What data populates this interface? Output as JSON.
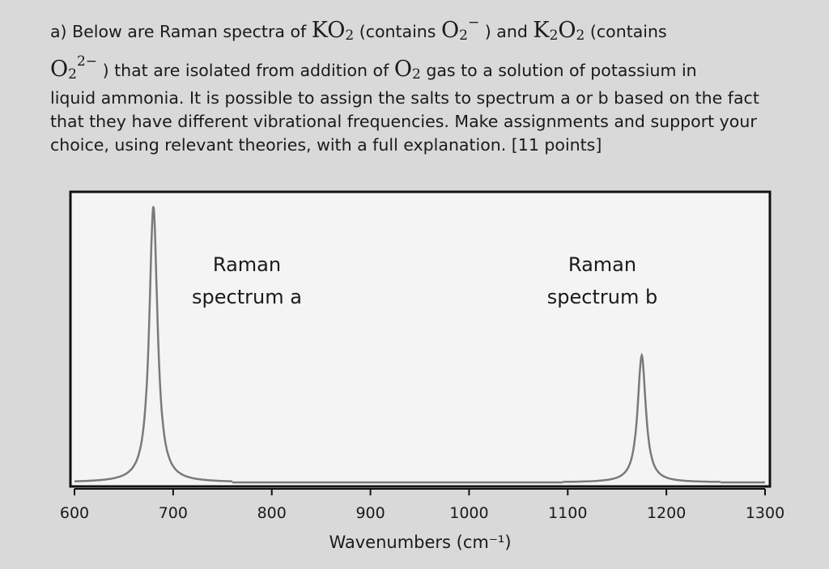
{
  "question": {
    "prefix": "a) Below are Raman spectra of",
    "ko2": "KO",
    "ko2_sub": "2",
    "contains1": "(contains",
    "o2_minus": "O",
    "o2_minus_sub": "2",
    "o2_minus_charge": "−",
    "and": ") and",
    "k2o2_k": "K",
    "k2o2_sub1": "2",
    "k2o2_o": "O",
    "k2o2_sub2": "2",
    "contains2": "(contains",
    "o22_o": "O",
    "o22_sub": "2",
    "o22_charge": "2−",
    "line2_text": ") that are isolated from addition of",
    "o2gas_o": "O",
    "o2gas_sub": "2",
    "line2_end": "gas to a solution of potassium in",
    "line3": "liquid ammonia. It is possible to assign the salts to spectrum a or b based on the fact",
    "line4": "that they have different vibrational frequencies. Make assignments and support your",
    "line5": "choice, using relevant theories, with a full explanation. [11 points]"
  },
  "chart_data": {
    "type": "line",
    "xlabel": "Wavenumbers (cm⁻¹)",
    "ylabel": "",
    "xlim": [
      600,
      1300
    ],
    "xticks": [
      "600",
      "700",
      "800",
      "900",
      "1000",
      "1100",
      "1200",
      "1300"
    ],
    "grid": false,
    "annotations": [
      {
        "line1": "Raman",
        "line2": "spectrum a"
      },
      {
        "line1": "Raman",
        "line2": "spectrum b"
      }
    ],
    "series": [
      {
        "peak_x": 680,
        "peak_height": 1.0,
        "width": 5
      },
      {
        "peak_x": 1175,
        "peak_height": 0.46,
        "width": 5
      }
    ],
    "line_color": "#7a7a7a"
  }
}
